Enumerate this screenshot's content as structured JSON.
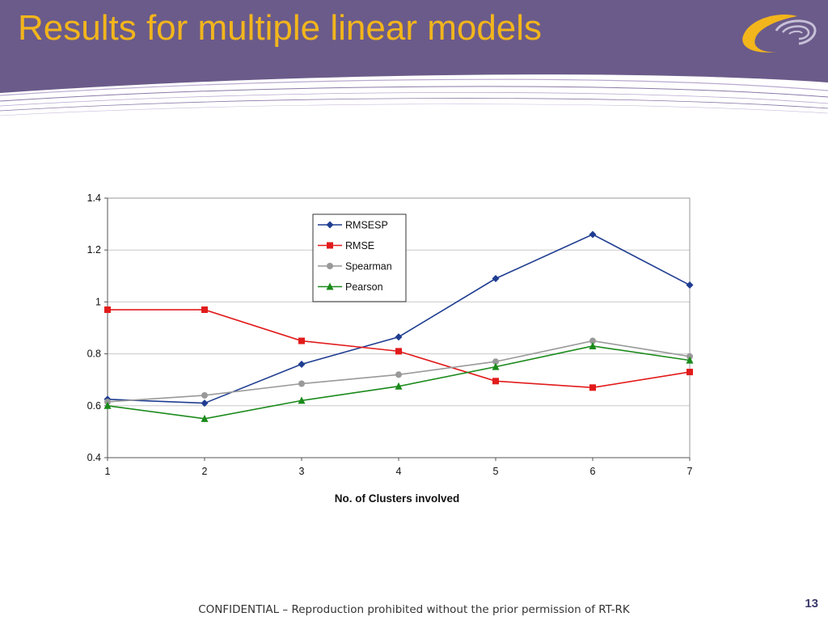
{
  "slide": {
    "title": "Results for multiple linear models",
    "footer": "CONFIDENTIAL – Reproduction prohibited without the prior permission of RT-RK",
    "page_number": "13"
  },
  "colors": {
    "header_bg": "#6b5b8a",
    "title": "#f2b51c",
    "logo_gold": "#f2b51c"
  },
  "chart_data": {
    "type": "line",
    "title": "",
    "xlabel": "No. of Clusters involved",
    "ylabel": "",
    "x": [
      1,
      2,
      3,
      4,
      5,
      6,
      7
    ],
    "ylim": [
      0.4,
      1.4
    ],
    "yticks": [
      "0.4",
      "0.6",
      "0.8",
      "1",
      "1.2",
      "1.4"
    ],
    "grid": true,
    "legend_position": "top-center",
    "series": [
      {
        "name": "RMSESP",
        "color": "#1f3d91",
        "marker": "diamond",
        "values": [
          0.625,
          0.61,
          0.76,
          0.865,
          1.09,
          1.26,
          1.065
        ]
      },
      {
        "name": "RMSE",
        "color": "#e21b1b",
        "marker": "square",
        "values": [
          0.97,
          0.97,
          0.85,
          0.81,
          0.695,
          0.67,
          0.73
        ]
      },
      {
        "name": "Spearman",
        "color": "#999999",
        "marker": "circle",
        "values": [
          0.615,
          0.64,
          0.685,
          0.72,
          0.77,
          0.85,
          0.79
        ]
      },
      {
        "name": "Pearson",
        "color": "#1a8a1a",
        "marker": "triangle",
        "values": [
          0.6,
          0.55,
          0.62,
          0.675,
          0.75,
          0.83,
          0.775
        ]
      }
    ]
  }
}
